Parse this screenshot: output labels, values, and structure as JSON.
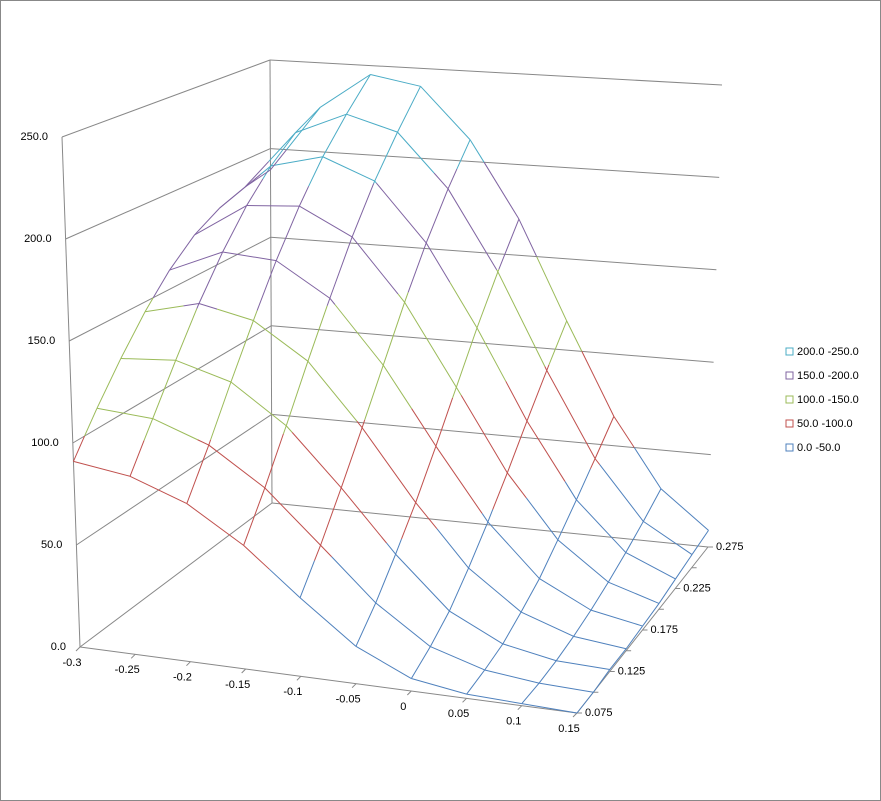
{
  "chart_data": {
    "type": "surface",
    "categories": [
      "-0.3",
      "-0.25",
      "-0.2",
      "-0.15",
      "-0.1",
      "-0.05",
      "0",
      "0.05",
      "0.1",
      "0.15"
    ],
    "series": [
      {
        "name": "0.075",
        "values": [
          91,
          87,
          77,
          60,
          38,
          18,
          6,
          2,
          1,
          0
        ]
      },
      {
        "name": null,
        "values": [
          110,
          108,
          98,
          80,
          55,
          30,
          12,
          4,
          1,
          0
        ]
      },
      {
        "name": "0.125",
        "values": [
          128,
          130,
          122,
          103,
          75,
          45,
          20,
          7,
          2,
          1
        ]
      },
      {
        "name": null,
        "values": [
          145,
          152,
          146,
          128,
          97,
          62,
          32,
          13,
          4,
          1
        ]
      },
      {
        "name": "0.175",
        "values": [
          160,
          172,
          170,
          153,
          121,
          82,
          46,
          20,
          7,
          2
        ]
      },
      {
        "name": null,
        "values": [
          172,
          190,
          192,
          178,
          146,
          104,
          62,
          30,
          11,
          3
        ]
      },
      {
        "name": "0.225",
        "values": [
          180,
          205,
          212,
          201,
          170,
          127,
          80,
          41,
          16,
          5
        ]
      },
      {
        "name": null,
        "values": [
          185,
          217,
          229,
          221,
          192,
          149,
          98,
          53,
          22,
          7
        ]
      },
      {
        "name": "0.275",
        "values": [
          188,
          225,
          245,
          240,
          212,
          170,
          116,
          66,
          29,
          9
        ]
      }
    ],
    "ylim": [
      0,
      250
    ],
    "yticks": [
      {
        "value": 0,
        "label": "0.0"
      },
      {
        "value": 50,
        "label": "50.0"
      },
      {
        "value": 100,
        "label": "100.0"
      },
      {
        "value": 150,
        "label": "150.0"
      },
      {
        "value": 200,
        "label": "200.0"
      },
      {
        "value": 250,
        "label": "250.0"
      }
    ],
    "legend": [
      {
        "label": "200.0 -250.0",
        "color": "#4bacc6"
      },
      {
        "label": "150.0 -200.0",
        "color": "#8064a2"
      },
      {
        "label": "100.0 -150.0",
        "color": "#9bbb59"
      },
      {
        "label": "50.0 -100.0",
        "color": "#c0504d"
      },
      {
        "label": "0.0 -50.0",
        "color": "#4f81bd"
      }
    ]
  }
}
